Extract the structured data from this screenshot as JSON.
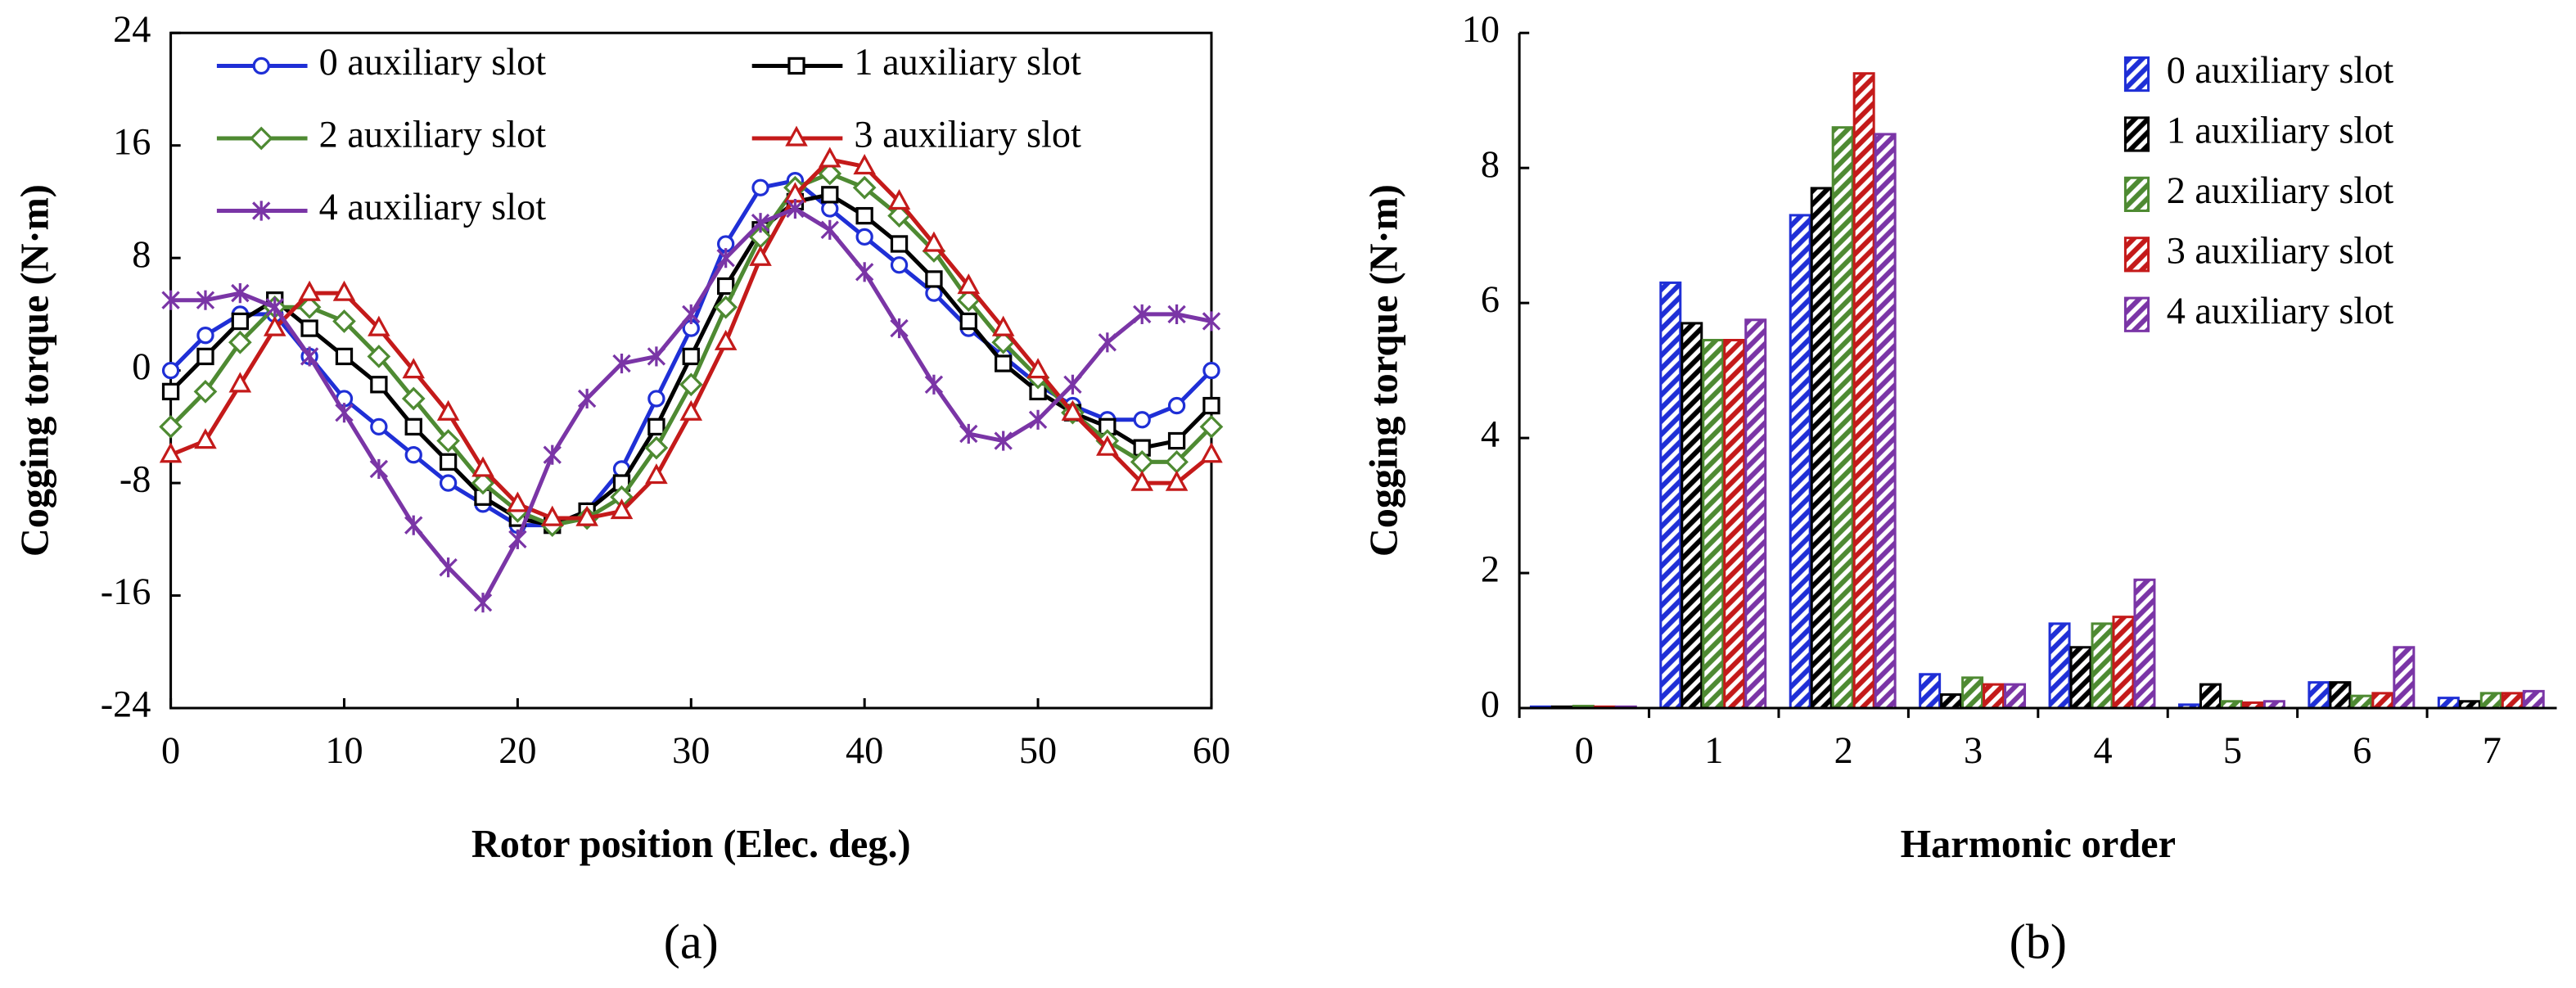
{
  "chart_data": [
    {
      "type": "line",
      "panel_label": "(a)",
      "x_label": "Rotor position (Elec. deg.)",
      "y_label": "Cogging torque (N·m)",
      "x": [
        0,
        2,
        4,
        6,
        8,
        10,
        12,
        14,
        16,
        18,
        20,
        22,
        24,
        26,
        28,
        30,
        32,
        34,
        36,
        38,
        40,
        42,
        44,
        46,
        48,
        50,
        52,
        54,
        56,
        58,
        60
      ],
      "xlim": [
        0,
        60
      ],
      "xticks": [
        0,
        10,
        20,
        30,
        40,
        50,
        60
      ],
      "ylim": [
        -24,
        24
      ],
      "yticks": [
        -24,
        -16,
        -8,
        0,
        8,
        16,
        24
      ],
      "legend": "top",
      "series": [
        {
          "name": "0 auxiliary slot",
          "color": "#1f2fd6",
          "marker": "circle",
          "values": [
            0,
            2.5,
            4,
            4,
            1,
            -2,
            -4,
            -6,
            -8,
            -9.5,
            -11,
            -11,
            -10,
            -7,
            -2,
            3,
            9,
            13,
            13.5,
            11.5,
            9.5,
            7.5,
            5.5,
            3,
            1,
            -1,
            -2.5,
            -3.5,
            -3.5,
            -2.5,
            0
          ]
        },
        {
          "name": "1 auxiliary slot",
          "color": "#000000",
          "marker": "square",
          "values": [
            -1.5,
            1,
            3.5,
            5,
            3,
            1,
            -1,
            -4,
            -6.5,
            -9,
            -10.5,
            -11,
            -10,
            -8,
            -4,
            1,
            6,
            10,
            12,
            12.5,
            11,
            9,
            6.5,
            3.5,
            0.5,
            -1.5,
            -3,
            -4,
            -5.5,
            -5,
            -2.5
          ]
        },
        {
          "name": "2 auxiliary slot",
          "color": "#4e8a32",
          "marker": "diamond",
          "values": [
            -4,
            -1.5,
            2,
            4.5,
            4.5,
            3.5,
            1,
            -2,
            -5,
            -8,
            -10,
            -11,
            -10.5,
            -9,
            -5.5,
            -1,
            4.5,
            9.5,
            13,
            14,
            13,
            11,
            8.5,
            5,
            2,
            -0.5,
            -3,
            -5,
            -6.5,
            -6.5,
            -4
          ]
        },
        {
          "name": "3 auxiliary slot",
          "color": "#c41a1a",
          "marker": "triangle",
          "values": [
            -6,
            -5,
            -1,
            3,
            5.5,
            5.5,
            3,
            0,
            -3,
            -7,
            -9.5,
            -10.5,
            -10.5,
            -10,
            -7.5,
            -3,
            2,
            8,
            12.5,
            15,
            14.5,
            12,
            9,
            6,
            3,
            0,
            -3,
            -5.5,
            -8,
            -8,
            -6
          ]
        },
        {
          "name": "4 auxiliary slot",
          "color": "#7a35a6",
          "marker": "star",
          "values": [
            5,
            5,
            5.5,
            4.5,
            1,
            -3,
            -7,
            -11,
            -14,
            -16.5,
            -12,
            -6,
            -2,
            0.5,
            1,
            4,
            8,
            10.5,
            11.5,
            10,
            7,
            3,
            -1,
            -4.5,
            -5,
            -3.5,
            -1,
            2,
            4,
            4,
            3.5
          ]
        }
      ]
    },
    {
      "type": "bar",
      "panel_label": "(b)",
      "x_label": "Harmonic order",
      "y_label": "Cogging torque (N·m)",
      "categories": [
        "0",
        "1",
        "2",
        "3",
        "4",
        "5",
        "6",
        "7"
      ],
      "ylim": [
        0,
        10
      ],
      "yticks": [
        0,
        2,
        4,
        6,
        8,
        10
      ],
      "legend": "upper right",
      "series": [
        {
          "name": "0 auxiliary slot",
          "color": "#1f2fd6",
          "values": [
            0.02,
            6.3,
            7.3,
            0.5,
            1.25,
            0.05,
            0.38,
            0.15
          ]
        },
        {
          "name": "1 auxiliary slot",
          "color": "#000000",
          "values": [
            0.02,
            5.7,
            7.7,
            0.2,
            0.9,
            0.35,
            0.38,
            0.1
          ]
        },
        {
          "name": "2 auxiliary slot",
          "color": "#4e8a32",
          "values": [
            0.03,
            5.45,
            8.6,
            0.45,
            1.25,
            0.1,
            0.18,
            0.22
          ]
        },
        {
          "name": "3 auxiliary slot",
          "color": "#c41a1a",
          "values": [
            0.02,
            5.45,
            9.4,
            0.35,
            1.35,
            0.08,
            0.22,
            0.22
          ]
        },
        {
          "name": "4 auxiliary slot",
          "color": "#7a35a6",
          "values": [
            0.02,
            5.75,
            8.5,
            0.35,
            1.9,
            0.1,
            0.9,
            0.25
          ]
        }
      ]
    }
  ]
}
